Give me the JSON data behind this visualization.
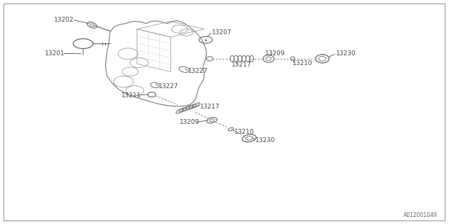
{
  "background_color": "#ffffff",
  "line_color": "#666666",
  "text_color": "#444444",
  "font_size": 6.5,
  "watermark": "A012001049",
  "engine_outline": {
    "x": [
      0.245,
      0.255,
      0.265,
      0.275,
      0.285,
      0.295,
      0.31,
      0.325,
      0.335,
      0.345,
      0.36,
      0.375,
      0.385,
      0.395,
      0.405,
      0.415,
      0.425,
      0.435,
      0.44,
      0.445,
      0.45,
      0.455,
      0.46,
      0.455,
      0.455,
      0.45,
      0.445,
      0.44,
      0.435,
      0.43,
      0.435,
      0.44,
      0.445,
      0.44,
      0.43,
      0.42,
      0.405,
      0.39,
      0.375,
      0.355,
      0.335,
      0.315,
      0.29,
      0.27,
      0.255,
      0.245,
      0.238,
      0.238,
      0.24,
      0.245
    ],
    "y": [
      0.86,
      0.875,
      0.885,
      0.895,
      0.895,
      0.905,
      0.905,
      0.895,
      0.895,
      0.905,
      0.905,
      0.895,
      0.895,
      0.905,
      0.91,
      0.905,
      0.895,
      0.88,
      0.87,
      0.86,
      0.845,
      0.825,
      0.8,
      0.775,
      0.755,
      0.74,
      0.725,
      0.71,
      0.695,
      0.68,
      0.665,
      0.645,
      0.625,
      0.605,
      0.585,
      0.57,
      0.555,
      0.545,
      0.54,
      0.54,
      0.545,
      0.555,
      0.565,
      0.575,
      0.59,
      0.615,
      0.645,
      0.7,
      0.775,
      0.86
    ]
  }
}
